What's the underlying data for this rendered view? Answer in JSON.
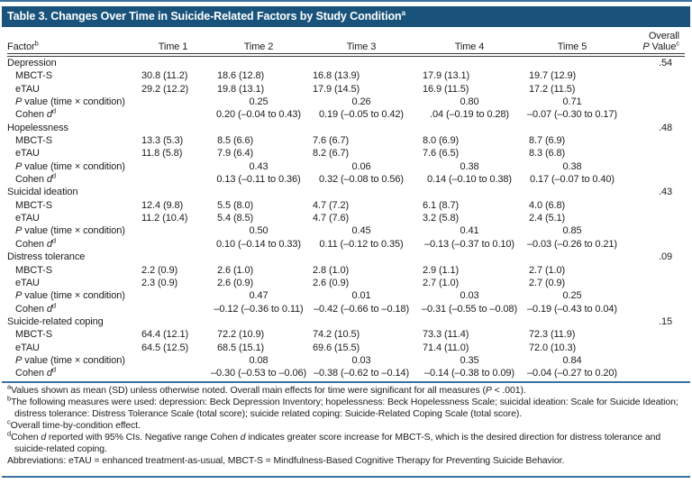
{
  "table": {
    "title": [
      {
        "t": "Table 3. Changes Over Time in Suicide-Related Factors by Study Condition"
      },
      {
        "t": "a",
        "s": "sup"
      }
    ],
    "header": {
      "factor": [
        {
          "t": "Factor"
        },
        {
          "t": "b",
          "s": "sup"
        }
      ],
      "times": [
        "Time 1",
        "Time 2",
        "Time 3",
        "Time 4",
        "Time 5"
      ],
      "overall_line1": [
        {
          "t": "Overall"
        }
      ],
      "overall_line2": [
        {
          "t": "P",
          "s": "i"
        },
        {
          "t": " Value"
        },
        {
          "t": "c",
          "s": "sup"
        }
      ]
    },
    "row_labels": {
      "mbcts": [
        {
          "t": "MBCT-S"
        }
      ],
      "etau": [
        {
          "t": "eTAU"
        }
      ],
      "p": [
        {
          "t": "P",
          "s": "i"
        },
        {
          "t": " value (time × condition)"
        }
      ],
      "cohen": [
        {
          "t": "Cohen "
        },
        {
          "t": "d",
          "s": "i"
        },
        {
          "t": "d",
          "s": "sup"
        }
      ]
    },
    "sections": [
      {
        "factor": "Depression",
        "overall_p": ".54",
        "mbcts": [
          "30.8 (11.2)",
          "18.6 (12.8)",
          "16.8 (13.9)",
          "17.9 (13.1)",
          "19.7 (12.9)"
        ],
        "etau": [
          "29.2 (12.2)",
          "19.8 (13.1)",
          "17.9 (14.5)",
          "16.9 (11.5)",
          "17.2 (11.5)"
        ],
        "p_values": [
          "0.25",
          "0.26",
          "0.80",
          "0.71"
        ],
        "cohen_d": [
          "0.20 (–0.04 to 0.43)",
          "0.19 (–0.05 to 0.42)",
          ".04 (–0.19 to 0.28)",
          "–0.07 (–0.30 to 0.17)"
        ]
      },
      {
        "factor": "Hopelessness",
        "overall_p": ".48",
        "mbcts": [
          "13.3 (5.3)",
          "8.5 (6.6)",
          "7.6 (6.7)",
          "8.0 (6.9)",
          "8.7 (6.9)"
        ],
        "etau": [
          "11.8 (5.8)",
          "7.9 (6.4)",
          "8.2 (6.7)",
          "7.6 (6.5)",
          "8.3 (6.8)"
        ],
        "p_values": [
          "0.43",
          "0.06",
          "0.38",
          "0.38"
        ],
        "cohen_d": [
          "0.13 (–0.11 to 0.36)",
          "0.32 (–0.08 to 0.56)",
          "0.14 (–0.10 to 0.38)",
          "0.17 (–0.07 to 0.40)"
        ]
      },
      {
        "factor": "Suicidal ideation",
        "overall_p": ".43",
        "mbcts": [
          "12.4 (9.8)",
          "5.5 (8.0)",
          "4.7 (7.2)",
          "6.1 (8.7)",
          "4.0 (6.8)"
        ],
        "etau": [
          "11.2 (10.4)",
          "5.4 (8.5)",
          "4.7 (7.6)",
          "3.2 (5.8)",
          "2.4 (5.1)"
        ],
        "p_values": [
          "0.50",
          "0.45",
          "0.41",
          "0.85"
        ],
        "cohen_d": [
          "0.10 (–0.14 to 0.33)",
          "0.11 (–0.12 to 0.35)",
          "–0.13 (–0.37 to 0.10)",
          "–0.03 (–0.26 to 0.21)"
        ]
      },
      {
        "factor": "Distress tolerance",
        "overall_p": ".09",
        "mbcts": [
          "2.2 (0.9)",
          "2.6 (1.0)",
          "2.8 (1.0)",
          "2.9 (1.1)",
          "2.7 (1.0)"
        ],
        "etau": [
          "2.3 (0.9)",
          "2.6 (0.9)",
          "2.6 (0.9)",
          "2.7 (1.0)",
          "2.7 (0.9)"
        ],
        "p_values": [
          "0.47",
          "0.01",
          "0.03",
          "0.25"
        ],
        "cohen_d": [
          "–0.12 (–0.36 to 0.11)",
          "–0.42 (–0.66 to –0.18)",
          "–0.31 (–0.55 to –0.08)",
          "–0.19 (–0.43 to 0.04)"
        ]
      },
      {
        "factor": "Suicide-related coping",
        "overall_p": ".15",
        "mbcts": [
          "64.4 (12.1)",
          "72.2 (10.9)",
          "74.2 (10.5)",
          "73.3 (11.4)",
          "72.3 (11.9)"
        ],
        "etau": [
          "64.5 (12.5)",
          "68.5 (15.1)",
          "69.6 (15.5)",
          "71.4 (11.0)",
          "72.0 (10.3)"
        ],
        "p_values": [
          "0.08",
          "0.03",
          "0.35",
          "0.84"
        ],
        "cohen_d": [
          "–0.30 (–0.53 to –0.06)",
          "–0.38 (–0.62 to –0.14)",
          "–0.14 (–0.38 to 0.09)",
          "–0.04 (–0.27 to 0.20)"
        ]
      }
    ],
    "footnotes": [
      [
        {
          "t": "a",
          "s": "sup"
        },
        {
          "t": "Values shown as mean (SD) unless otherwise noted. Overall main effects for time were significant for all measures ("
        },
        {
          "t": "P",
          "s": "i"
        },
        {
          "t": " < .001)."
        }
      ],
      [
        {
          "t": "b",
          "s": "sup"
        },
        {
          "t": "The following measures were used: depression: Beck Depression Inventory; hopelessness: Beck Hopelessness Scale; suicidal ideation: Scale for Suicide Ideation; distress tolerance: Distress Tolerance Scale (total score); suicide related coping: Suicide-Related Coping Scale (total score)."
        }
      ],
      [
        {
          "t": "c",
          "s": "sup"
        },
        {
          "t": "Overall time-by-condition effect."
        }
      ],
      [
        {
          "t": "d",
          "s": "sup"
        },
        {
          "t": "Cohen "
        },
        {
          "t": "d",
          "s": "i"
        },
        {
          "t": " reported with 95% CIs. Negative range Cohen "
        },
        {
          "t": "d",
          "s": "i"
        },
        {
          "t": " indicates greater score increase for MBCT-S, which is the desired direction for distress tolerance and suicide-related coping."
        }
      ],
      [
        {
          "t": "Abbreviations: eTAU = enhanced treatment-as-usual, MBCT-S = Mindfulness-Based Cognitive Therapy for Preventing Suicide Behavior."
        }
      ]
    ],
    "colors": {
      "title_bar_bg": "#19537b",
      "title_text": "#ffffff",
      "rule_blue": "#3a71a0",
      "header_double_rule": "#3b3b3b",
      "body_text": "#1c1c1c"
    }
  }
}
